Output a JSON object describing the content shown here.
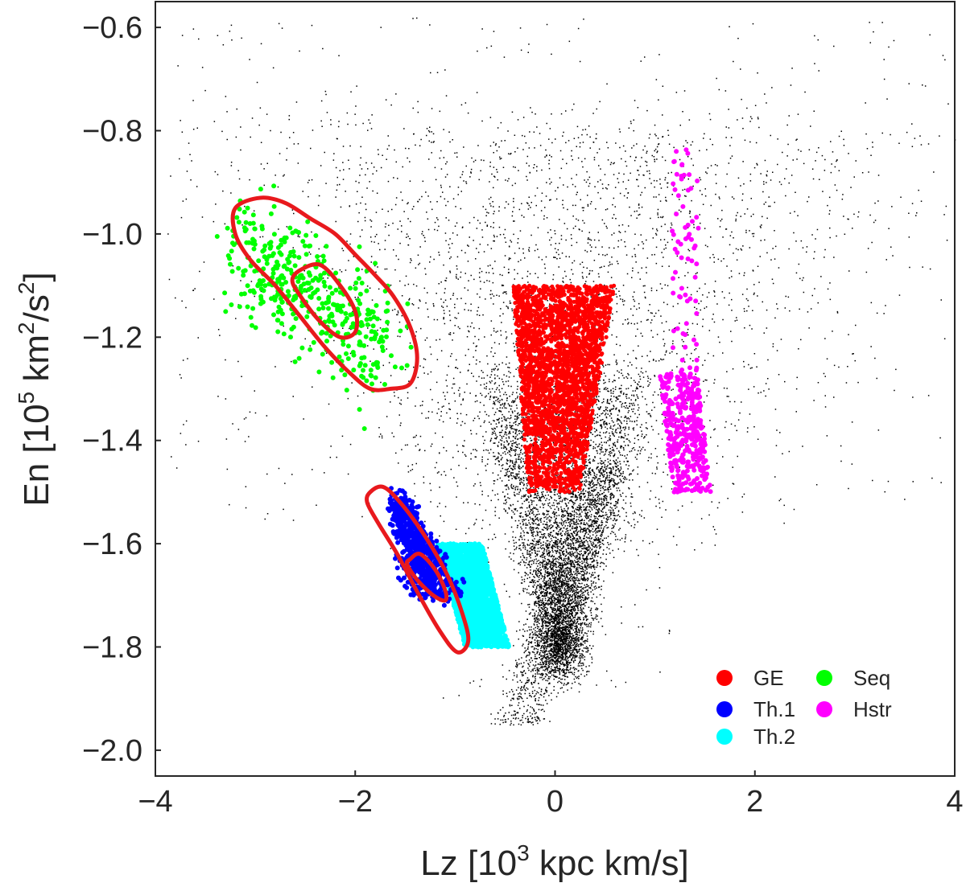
{
  "chart_data": {
    "type": "scatter",
    "xlabel": "Lz [10³ kpc km/s]",
    "xlabel_parts": {
      "pre": "Lz [10",
      "sup": "3",
      "post": " kpc km/s]"
    },
    "ylabel": "En [10⁵ km²/s²]",
    "ylabel_parts": {
      "pre": "En [10",
      "sup1": "5",
      "mid": " km",
      "sup2": "2",
      "mid2": "/s",
      "sup3": "2",
      "post": "]"
    },
    "xlim": [
      -4,
      4
    ],
    "ylim": [
      -2.05,
      -0.55
    ],
    "xticks": [
      -4,
      -2,
      0,
      2,
      4
    ],
    "yticks": [
      -2.0,
      -1.8,
      -1.6,
      -1.4,
      -1.2,
      -1.0,
      -0.8,
      -0.6
    ],
    "xtick_labels": [
      "−4",
      "−2",
      "0",
      "2",
      "4"
    ],
    "ytick_labels": [
      "−2.0",
      "−1.8",
      "−1.6",
      "−1.4",
      "−1.2",
      "−1.0",
      "−0.8",
      "−0.6"
    ],
    "grid": false,
    "legend_position": "bottom-right",
    "background_color": "#000000",
    "series": [
      {
        "name": "GE",
        "color": "#ff0000",
        "region": {
          "shape": "trapezoid",
          "e_top": -1.1,
          "e_bottom": -1.5,
          "lz_top": [
            -0.42,
            0.6
          ],
          "lz_bottom": [
            -0.27,
            0.25
          ]
        }
      },
      {
        "name": "Th.1",
        "color": "#0000ff",
        "region": {
          "shape": "strip",
          "lz_center_at": [
            [
              -1.6,
              -1.5
            ],
            [
              -1.2,
              -1.7
            ]
          ],
          "half_width": 0.12
        }
      },
      {
        "name": "Th.2",
        "color": "#00ffff",
        "region": {
          "shape": "quadrilateral",
          "corners": [
            [
              -1.18,
              -1.6
            ],
            [
              -0.73,
              -1.6
            ],
            [
              -0.46,
              -1.8
            ],
            [
              -0.9,
              -1.8
            ]
          ]
        }
      },
      {
        "name": "Seq",
        "color": "#00ff00",
        "region": {
          "shape": "ellipse",
          "center": [
            -2.45,
            -1.12
          ],
          "axis": [
            -1.2,
            0.16
          ],
          "spread": [
            0.12,
            0.055
          ]
        }
      },
      {
        "name": "Hstr",
        "color": "#ff00ff",
        "region": {
          "shape": "column",
          "lz_range": [
            1.05,
            1.5
          ],
          "e_range": [
            -1.52,
            -0.83
          ],
          "dense_range": [
            -1.5,
            -1.27
          ]
        }
      }
    ],
    "contours": [
      {
        "color": "#e8191d",
        "points": [
          [
            -3.2,
            -0.95
          ],
          [
            -2.95,
            -0.93
          ],
          [
            -2.7,
            -0.94
          ],
          [
            -2.45,
            -0.97
          ],
          [
            -2.2,
            -1.0
          ],
          [
            -2.0,
            -1.04
          ],
          [
            -1.8,
            -1.08
          ],
          [
            -1.62,
            -1.12
          ],
          [
            -1.45,
            -1.18
          ],
          [
            -1.38,
            -1.24
          ],
          [
            -1.45,
            -1.29
          ],
          [
            -1.65,
            -1.3
          ],
          [
            -1.85,
            -1.3
          ],
          [
            -2.05,
            -1.27
          ],
          [
            -2.3,
            -1.22
          ],
          [
            -2.55,
            -1.16
          ],
          [
            -2.8,
            -1.1
          ],
          [
            -3.05,
            -1.05
          ],
          [
            -3.2,
            -1.0
          ]
        ]
      },
      {
        "color": "#e8191d",
        "points": [
          [
            -2.55,
            -1.07
          ],
          [
            -2.35,
            -1.06
          ],
          [
            -2.15,
            -1.1
          ],
          [
            -2.0,
            -1.15
          ],
          [
            -2.0,
            -1.19
          ],
          [
            -2.15,
            -1.2
          ],
          [
            -2.35,
            -1.17
          ],
          [
            -2.55,
            -1.12
          ],
          [
            -2.63,
            -1.09
          ]
        ]
      },
      {
        "color": "#e8191d",
        "points": [
          [
            -1.85,
            -1.5
          ],
          [
            -1.72,
            -1.49
          ],
          [
            -1.55,
            -1.52
          ],
          [
            -1.32,
            -1.58
          ],
          [
            -1.08,
            -1.66
          ],
          [
            -0.92,
            -1.74
          ],
          [
            -0.87,
            -1.79
          ],
          [
            -0.98,
            -1.81
          ],
          [
            -1.15,
            -1.77
          ],
          [
            -1.36,
            -1.7
          ],
          [
            -1.58,
            -1.62
          ],
          [
            -1.77,
            -1.56
          ],
          [
            -1.88,
            -1.52
          ]
        ]
      },
      {
        "color": "#e8191d",
        "points": [
          [
            -1.45,
            -1.63
          ],
          [
            -1.35,
            -1.62
          ],
          [
            -1.2,
            -1.65
          ],
          [
            -1.1,
            -1.69
          ],
          [
            -1.1,
            -1.71
          ],
          [
            -1.22,
            -1.7
          ],
          [
            -1.38,
            -1.67
          ],
          [
            -1.48,
            -1.64
          ]
        ]
      }
    ],
    "background_distribution": {
      "v_shape": {
        "apex": [
          0.05,
          -1.82
        ],
        "left_slope": -2.4,
        "right_slope": 1.5,
        "energy_range": [
          -1.95,
          -1.3
        ]
      },
      "halo": {
        "lz_range": [
          -3.9,
          3.9
        ],
        "e_range": [
          -1.9,
          -0.58
        ]
      }
    }
  }
}
